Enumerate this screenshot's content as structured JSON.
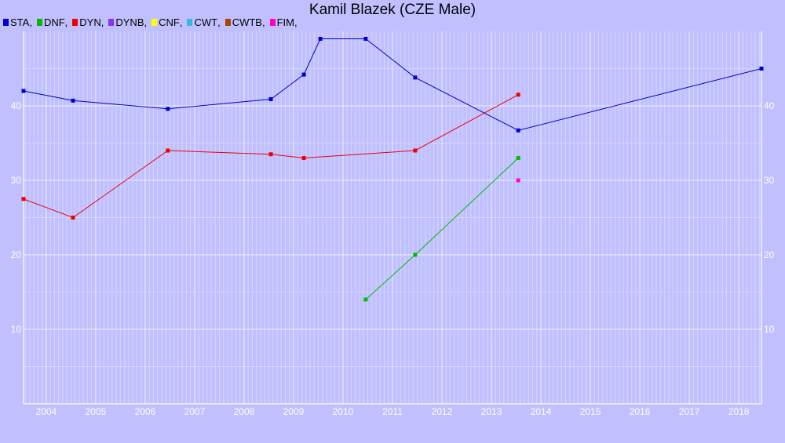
{
  "title": "Kamil Blazek (CZE Male)",
  "chart_data": {
    "type": "line",
    "title": "Kamil Blazek (CZE Male)",
    "xlabel": "",
    "ylabel": "",
    "xlim": [
      "2003-07",
      "2018-06"
    ],
    "ylim": [
      0,
      50
    ],
    "x_ticks": [
      "2004",
      "2005",
      "2006",
      "2007",
      "2008",
      "2009",
      "2010",
      "2011",
      "2012",
      "2013",
      "2014",
      "2015",
      "2016",
      "2017",
      "2018"
    ],
    "y_ticks": [
      "10",
      "20",
      "30",
      "40"
    ],
    "grid": true,
    "legend_position": "top-left",
    "series": [
      {
        "name": "STA",
        "color": "#0000cc",
        "points": [
          {
            "x": "2003-07",
            "y": 42
          },
          {
            "x": "2004-07",
            "y": 40.7
          },
          {
            "x": "2006-06",
            "y": 39.6
          },
          {
            "x": "2008-07",
            "y": 40.9
          },
          {
            "x": "2009-03",
            "y": 44.2
          },
          {
            "x": "2009-07",
            "y": 49
          },
          {
            "x": "2010-06",
            "y": 49
          },
          {
            "x": "2011-06",
            "y": 43.8
          },
          {
            "x": "2013-07",
            "y": 36.7
          },
          {
            "x": "2018-06",
            "y": 45
          }
        ]
      },
      {
        "name": "DNF",
        "color": "#00bb00",
        "points": [
          {
            "x": "2010-06",
            "y": 14
          },
          {
            "x": "2011-06",
            "y": 20
          },
          {
            "x": "2013-07",
            "y": 33
          }
        ]
      },
      {
        "name": "DYN",
        "color": "#ee0000",
        "points": [
          {
            "x": "2003-07",
            "y": 27.5
          },
          {
            "x": "2004-07",
            "y": 25
          },
          {
            "x": "2006-06",
            "y": 34
          },
          {
            "x": "2008-07",
            "y": 33.5
          },
          {
            "x": "2009-03",
            "y": 33
          },
          {
            "x": "2011-06",
            "y": 34
          },
          {
            "x": "2013-07",
            "y": 41.5
          }
        ]
      },
      {
        "name": "DYNB",
        "color": "#8833ee",
        "points": []
      },
      {
        "name": "CNF",
        "color": "#ffff00",
        "points": []
      },
      {
        "name": "CWT",
        "color": "#33bbdd",
        "points": []
      },
      {
        "name": "CWTB",
        "color": "#aa4400",
        "points": []
      },
      {
        "name": "FIM",
        "color": "#ff00cc",
        "points": [
          {
            "x": "2013-07",
            "y": 30
          }
        ]
      }
    ]
  }
}
